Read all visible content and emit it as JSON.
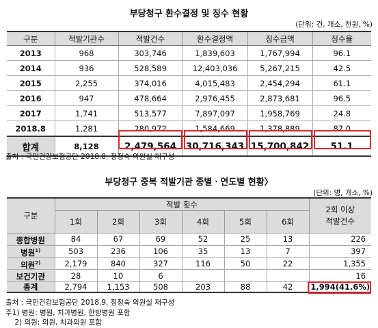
{
  "table1": {
    "title": "부당청구 환수결정 및 징수 현황",
    "unit": "(단위: 건, 개소, 천원, %)",
    "headers": [
      "구분",
      "적발기관수",
      "적발건수",
      "환수결정액",
      "징수금액",
      "징수율"
    ],
    "rows": [
      [
        "2013",
        "968",
        "303,746",
        "1,839,603",
        "1,767,994",
        "96.1"
      ],
      [
        "2014",
        "936",
        "528,589",
        "12,403,036",
        "5,267,215",
        "42.5"
      ],
      [
        "2015",
        "2,255",
        "374,016",
        "4,015,483",
        "2,454,294",
        "61.1"
      ],
      [
        "2016",
        "947",
        "478,664",
        "2,976,455",
        "2,873,681",
        "96.5"
      ],
      [
        "2017",
        "1,741",
        "513,577",
        "7,897,097",
        "1,958,769",
        "24.8"
      ],
      [
        "2018.8",
        "1,281",
        "280,972",
        "1,584,669",
        "1,378,889",
        "87.0"
      ]
    ],
    "total": [
      "합계",
      "8,128",
      "2,479,564",
      "30,716,343",
      "15,700,842",
      "51.1"
    ],
    "source": "출처 : 국민건강보험공단 2018.8, 정정숙 의원실 재구성"
  },
  "table2": {
    "title": "부당청구 중복 적발기관 종별ㆍ연도별 현황〉",
    "unit": "(단위: 명, 개소, %)",
    "header_group": "구분",
    "header_span": "적발 횟수",
    "sub_headers": [
      "1회",
      "2회",
      "3회",
      "4회",
      "5회",
      "6회"
    ],
    "last_header_line1": "2회 이상",
    "last_header_line2": "적발건수",
    "rows": [
      {
        "label": "종합병원",
        "sup": "",
        "values": [
          "84",
          "67",
          "69",
          "52",
          "25",
          "13",
          "226"
        ]
      },
      {
        "label": "병원",
        "sup": "1)",
        "values": [
          "503",
          "236",
          "106",
          "35",
          "13",
          "7",
          "397"
        ]
      },
      {
        "label": "의원",
        "sup": "2)",
        "values": [
          "2,179",
          "840",
          "327",
          "116",
          "50",
          "22",
          "1,355"
        ]
      },
      {
        "label": "보건기관",
        "sup": "",
        "values": [
          "28",
          "10",
          "6",
          "",
          "",
          "",
          "16"
        ]
      }
    ],
    "total": {
      "label": "총계",
      "values": [
        "2,794",
        "1,153",
        "508",
        "203",
        "88",
        "42",
        "1,994(41.6%)"
      ]
    },
    "notes": [
      "출처 : 국민건강보험공단 2018.9, 정정숙 의원실 재구성",
      "주1) 병원: 병원, 치과병원, 한방병원 포함",
      "    2) 의원: 의원, 치과의원 포함"
    ]
  }
}
